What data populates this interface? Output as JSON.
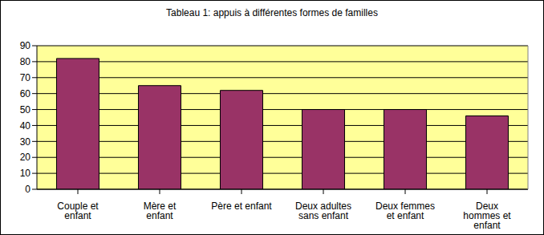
{
  "chart_data": {
    "type": "bar",
    "title": "Tableau 1: appuis à différentes formes de familles",
    "categories": [
      "Couple et enfant",
      "Mère et enfant",
      "Père et enfant",
      "Deux adultes sans enfant",
      "Deux femmes et enfant",
      "Deux hommes et enfant"
    ],
    "values": [
      82,
      65,
      62,
      50,
      50,
      46
    ],
    "color": "#993366",
    "ylim": [
      0,
      90
    ],
    "yticks": [
      0,
      10,
      20,
      30,
      40,
      50,
      60,
      70,
      80,
      90
    ],
    "grid": true
  }
}
